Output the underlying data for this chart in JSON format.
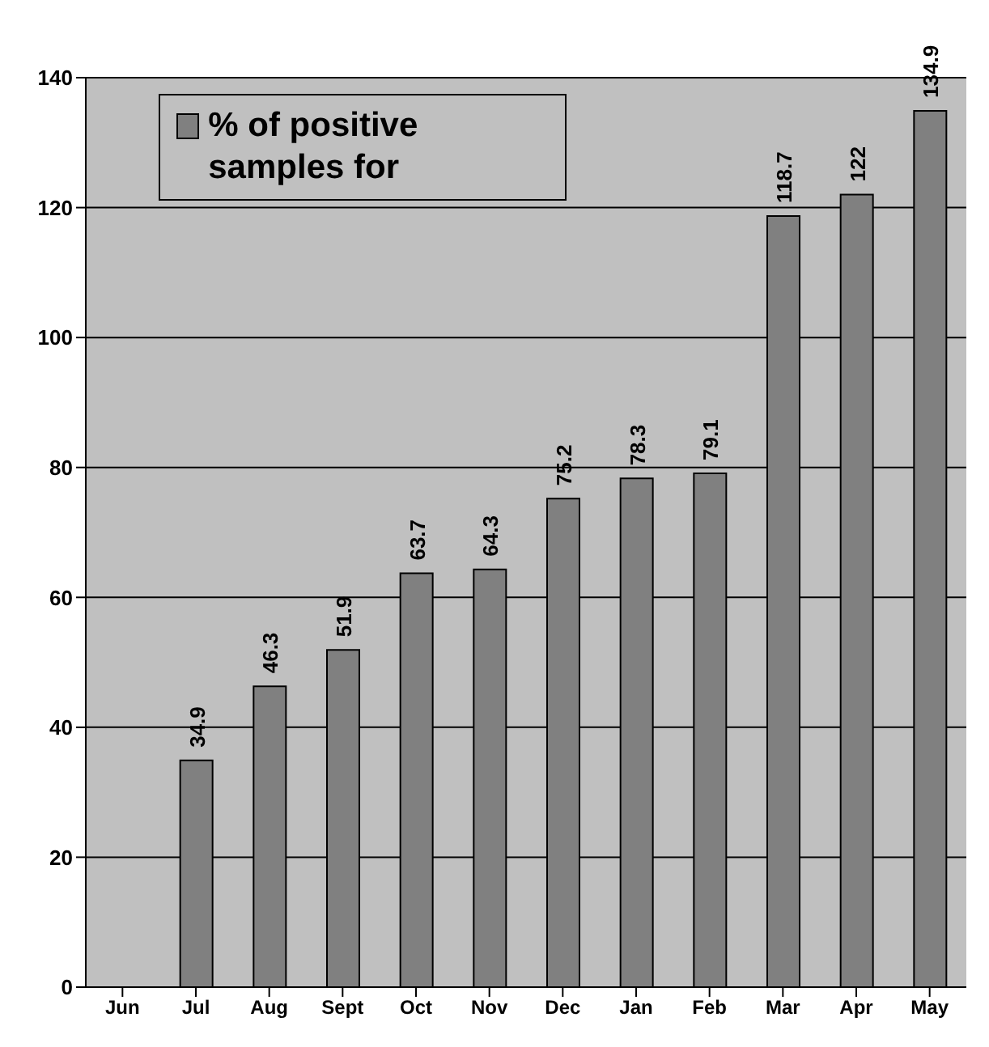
{
  "chart_data": {
    "type": "bar",
    "categories": [
      "Jun",
      "Jul",
      "Aug",
      "Sept",
      "Oct",
      "Nov",
      "Dec",
      "Jan",
      "Feb",
      "Mar",
      "Apr",
      "May"
    ],
    "series": [
      {
        "name": "% of positive samples for",
        "color": "#808080",
        "values": [
          null,
          34.9,
          46.3,
          51.9,
          63.7,
          64.3,
          75.2,
          78.3,
          79.1,
          118.7,
          122,
          134.9
        ]
      }
    ],
    "ylim": [
      0,
      140
    ],
    "yticks": [
      0,
      20,
      40,
      60,
      80,
      100,
      120,
      140
    ],
    "grid": "y",
    "legend": "top left",
    "data_labels": true
  }
}
